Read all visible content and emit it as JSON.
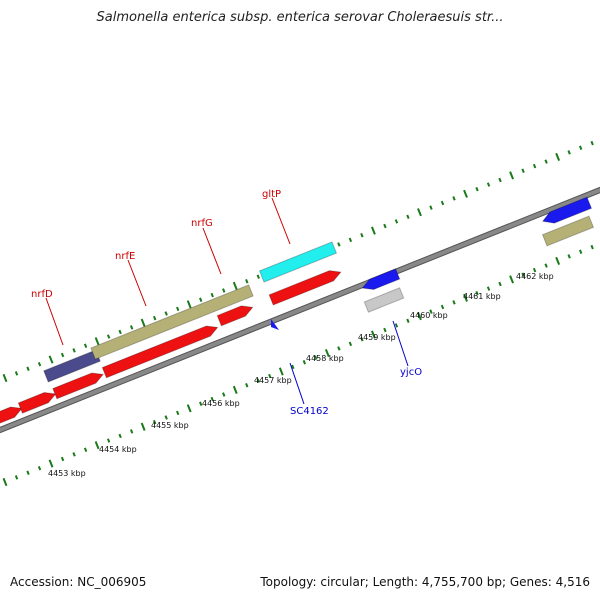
{
  "title": "Salmonella enterica subsp. enterica serovar Choleraesuis str...",
  "accession": "Accession: NC_006905",
  "topology": "Topology: circular; Length: 4,755,700 bp; Genes: 4,516",
  "colors": {
    "backbone": "#888888",
    "tick": "#1a7a1a",
    "gene_red": "#ee1111",
    "gene_khaki": "#b5b076",
    "gene_navy": "#4a4a8c",
    "gene_cyan": "#22eeee",
    "gene_blue": "#1a1aee",
    "gene_grey": "#c8c8c8"
  },
  "kbp_labels": [
    "4453 kbp",
    "4454 kbp",
    "4455 kbp",
    "4456 kbp",
    "4457 kbp",
    "4458 kbp",
    "4459 kbp",
    "4460 kbp",
    "4461 kbp",
    "4462 kbp"
  ],
  "gene_labels": {
    "nrfD": "nrfD",
    "nrfE": "nrfE",
    "nrfG": "nrfG",
    "gltP": "gltP",
    "SC4162": "SC4162",
    "yjcO": "yjcO"
  }
}
